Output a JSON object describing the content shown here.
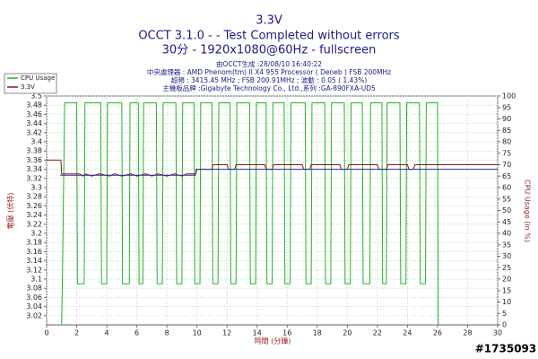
{
  "chart_data": {
    "type": "line",
    "title": "3.3V",
    "subtitle": [
      "OCCT 3.1.0 -  - Test Completed without errors",
      "30分 - 1920x1080@60Hz - fullscreen"
    ],
    "info": [
      "由OCCT生成 :28/08/10 16:40:22",
      "中央處理器 : AMD Phenom(tm) II X4 955 Processor ( Deneb ) FSB 200MHz",
      "超頻 : 3415.45 MHz ; FSB 200.91MHz ; 波動 : 0.05 ( 1.43%)",
      "主機板品牌 :Gigabyte Technology Co., Ltd.,系列 :GA-890FXA-UD5"
    ],
    "x_label": "時間 (分鐘)",
    "y_label": "電壓 (伏特)",
    "y2_label": "CPU Usage (in %)",
    "watermark": "#1735093",
    "xlim": [
      0,
      30
    ],
    "xticks": [
      0,
      2,
      4,
      6,
      8,
      10,
      12,
      14,
      16,
      18,
      20,
      22,
      24,
      26,
      28,
      30
    ],
    "ylim": [
      3,
      3.5
    ],
    "yticks": [
      3.02,
      3.04,
      3.06,
      3.08,
      3.1,
      3.12,
      3.14,
      3.16,
      3.18,
      3.2,
      3.22,
      3.24,
      3.26,
      3.28,
      3.3,
      3.32,
      3.34,
      3.36,
      3.38,
      3.4,
      3.42,
      3.44,
      3.46,
      3.48,
      3.5
    ],
    "y2lim": [
      0,
      100
    ],
    "y2ticks": [
      0,
      5,
      10,
      15,
      20,
      25,
      30,
      35,
      40,
      45,
      50,
      55,
      60,
      65,
      70,
      75,
      80,
      85,
      90,
      95,
      100
    ],
    "grid": true,
    "legend": "top-left",
    "series": [
      {
        "name": "CPU Usage",
        "color": "#22b422",
        "axis": "y2",
        "x": [
          1.0,
          1.05,
          1.2,
          2.0,
          2.05,
          2.5,
          2.55,
          3.6,
          3.65,
          4.0,
          4.05,
          5.0,
          5.05,
          5.5,
          5.55,
          6.1,
          6.15,
          6.4,
          6.45,
          7.3,
          7.35,
          7.7,
          7.75,
          8.6,
          8.65,
          9.0,
          9.05,
          9.8,
          9.85,
          10.2,
          10.25,
          11.0,
          11.05,
          11.4,
          11.45,
          12.2,
          12.25,
          12.6,
          12.65,
          13.5,
          13.55,
          13.9,
          13.95,
          14.6,
          14.65,
          15.0,
          15.05,
          15.8,
          15.85,
          16.2,
          16.25,
          17.2,
          17.25,
          17.6,
          17.65,
          18.5,
          18.55,
          18.9,
          18.95,
          19.8,
          19.85,
          20.2,
          20.25,
          21.0,
          21.05,
          21.5,
          21.55,
          22.3,
          22.35,
          22.6,
          22.65,
          23.5,
          23.55,
          23.9,
          23.95,
          24.8,
          24.85,
          25.2,
          25.25,
          26.0,
          26.05
        ],
        "values": [
          0,
          20,
          97,
          97,
          18,
          18,
          97,
          97,
          18,
          18,
          97,
          97,
          18,
          18,
          97,
          97,
          18,
          18,
          97,
          97,
          18,
          18,
          97,
          97,
          18,
          18,
          97,
          97,
          18,
          18,
          97,
          97,
          18,
          18,
          97,
          97,
          18,
          18,
          97,
          97,
          18,
          18,
          97,
          97,
          18,
          18,
          97,
          97,
          18,
          18,
          97,
          97,
          18,
          18,
          97,
          97,
          18,
          18,
          97,
          97,
          18,
          18,
          97,
          97,
          18,
          18,
          97,
          97,
          18,
          18,
          97,
          97,
          18,
          18,
          97,
          97,
          18,
          18,
          97,
          97,
          0
        ]
      },
      {
        "name": "3.3V",
        "color": "#8b1a1a",
        "axis": "y",
        "x": [
          0,
          0.95,
          1.0,
          2.2,
          2.4,
          2.6,
          3.0,
          3.5,
          4.2,
          4.5,
          5.0,
          5.6,
          6.0,
          6.6,
          7.0,
          7.4,
          8.0,
          8.5,
          9.0,
          9.3,
          9.9,
          10.0,
          11.0,
          11.05,
          12.0,
          12.1,
          12.5,
          12.6,
          14.5,
          14.6,
          15.0,
          15.1,
          17.0,
          17.1,
          17.5,
          17.6,
          19.5,
          19.6,
          20.0,
          20.1,
          22.0,
          22.1,
          22.6,
          22.7,
          24.0,
          24.1,
          24.4,
          24.5,
          30
        ],
        "values": [
          3.36,
          3.36,
          3.33,
          3.33,
          3.325,
          3.33,
          3.325,
          3.33,
          3.325,
          3.33,
          3.325,
          3.33,
          3.325,
          3.33,
          3.325,
          3.33,
          3.325,
          3.33,
          3.325,
          3.33,
          3.33,
          3.34,
          3.34,
          3.35,
          3.35,
          3.34,
          3.34,
          3.35,
          3.35,
          3.34,
          3.34,
          3.35,
          3.35,
          3.34,
          3.34,
          3.35,
          3.35,
          3.34,
          3.34,
          3.35,
          3.35,
          3.34,
          3.34,
          3.35,
          3.35,
          3.34,
          3.34,
          3.35,
          3.35
        ]
      },
      {
        "color": "#2a2aa0",
        "axis": "y",
        "x": [
          0.9,
          9.9,
          9.95,
          30
        ],
        "values": [
          3.327,
          3.327,
          3.34,
          3.34
        ]
      }
    ]
  }
}
